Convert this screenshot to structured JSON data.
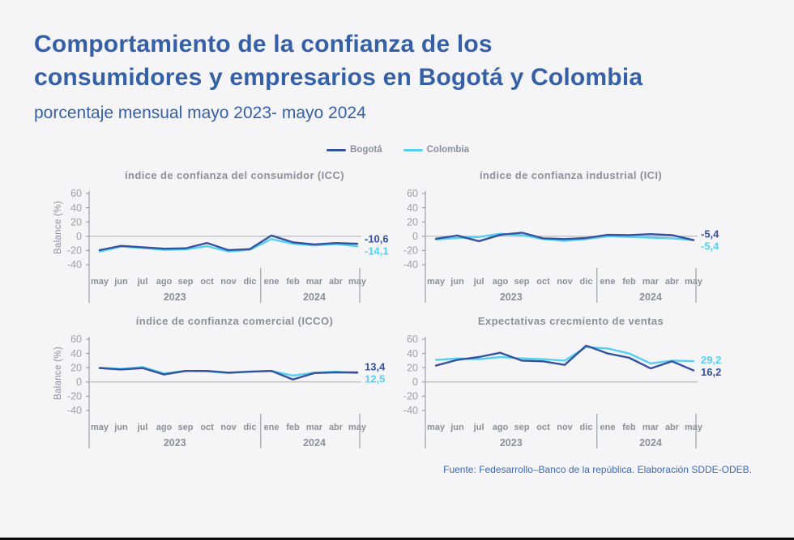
{
  "page": {
    "title_line1": "Comportamiento de la confianza de los",
    "title_line2": "consumidores y empresarios en Bogotá y Colombia",
    "subtitle": "porcentaje mensual mayo 2023- mayo 2024",
    "source": "Fuente: Fedesarrollo–Banco de la república. Elaboración SDDE-ODEB."
  },
  "colors": {
    "bogota": "#33519d",
    "colombia": "#55d0f2",
    "title_blue": "#3560a8",
    "source_blue": "#3e6ab3",
    "axis_gray": "#9ba1a9",
    "zero_line": "#b0b5bc",
    "text_gray": "#8b909a",
    "background": "#f5f5f7"
  },
  "legend": {
    "items": [
      {
        "label": "Bogotá",
        "color_key": "bogota"
      },
      {
        "label": "Colombia",
        "color_key": "colombia"
      }
    ]
  },
  "chart_data": [
    {
      "type": "line",
      "title": "índice de confianza del consumidor (ICC)",
      "ylabel": "Balance (%)",
      "x": [
        "may",
        "jun",
        "jul",
        "ago",
        "sep",
        "oct",
        "nov",
        "dic",
        "ene",
        "feb",
        "mar",
        "abr",
        "may"
      ],
      "year_groups": [
        {
          "label": "2023",
          "from": 0,
          "to": 7
        },
        {
          "label": "2024",
          "from": 8,
          "to": 12
        }
      ],
      "ylim": [
        -40,
        60
      ],
      "yticks": [
        60,
        40,
        20,
        0,
        -20,
        -40
      ],
      "grid": "zero-line-only",
      "series": [
        {
          "name": "Bogotá",
          "color_key": "bogota",
          "end_label": "-10,6",
          "values": [
            -19.5,
            -13.5,
            -15.5,
            -17.5,
            -17.0,
            -9.5,
            -19.5,
            -18.0,
            1.0,
            -8.5,
            -11.5,
            -9.5,
            -10.6
          ]
        },
        {
          "name": "Colombia",
          "color_key": "colombia",
          "end_label": "-14,1",
          "values": [
            -21.5,
            -14.5,
            -16.5,
            -19.0,
            -18.5,
            -14.0,
            -21.5,
            -19.0,
            -4.0,
            -10.5,
            -13.0,
            -11.0,
            -14.1
          ]
        }
      ]
    },
    {
      "type": "line",
      "title": "índice de confianza industrial (ICI)",
      "ylabel": "",
      "x": [
        "may",
        "jun",
        "jul",
        "ago",
        "sep",
        "oct",
        "nov",
        "dic",
        "ene",
        "feb",
        "mar",
        "abr",
        "may"
      ],
      "year_groups": [
        {
          "label": "2023",
          "from": 0,
          "to": 7
        },
        {
          "label": "2024",
          "from": 8,
          "to": 12
        }
      ],
      "ylim": [
        -40,
        60
      ],
      "yticks": [
        60,
        40,
        20,
        0,
        -20,
        -40
      ],
      "grid": "zero-line-only",
      "series": [
        {
          "name": "Bogotá",
          "color_key": "bogota",
          "end_label": "-5,4",
          "values": [
            -3.5,
            1.0,
            -7.0,
            2.0,
            5.0,
            -3.0,
            -4.0,
            -2.5,
            2.0,
            1.5,
            3.0,
            1.5,
            -5.4
          ]
        },
        {
          "name": "Colombia",
          "color_key": "colombia",
          "end_label": "-5,4",
          "values": [
            -4.5,
            -2.5,
            -1.0,
            3.5,
            1.5,
            -4.0,
            -6.5,
            -4.0,
            0.0,
            -1.0,
            -2.0,
            -3.0,
            -5.4
          ]
        }
      ]
    },
    {
      "type": "line",
      "title": "índice de confianza comercial (ICCO)",
      "ylabel": "Balance (%)",
      "x": [
        "may",
        "jun",
        "jul",
        "ago",
        "sep",
        "oct",
        "nov",
        "dic",
        "ene",
        "feb",
        "mar",
        "abr",
        "may"
      ],
      "year_groups": [
        {
          "label": "2023",
          "from": 0,
          "to": 7
        },
        {
          "label": "2024",
          "from": 8,
          "to": 12
        }
      ],
      "ylim": [
        -40,
        60
      ],
      "yticks": [
        60,
        40,
        20,
        0,
        -20,
        -40
      ],
      "grid": "zero-line-only",
      "series": [
        {
          "name": "Bogotá",
          "color_key": "bogota",
          "end_label": "13,4",
          "values": [
            19.5,
            17.5,
            19.5,
            10.5,
            15.5,
            15.5,
            13.0,
            14.5,
            15.5,
            3.5,
            12.5,
            13.5,
            13.4
          ]
        },
        {
          "name": "Colombia",
          "color_key": "colombia",
          "end_label": "12,5",
          "values": [
            20.0,
            18.5,
            21.0,
            12.0,
            15.5,
            15.0,
            12.5,
            14.5,
            15.5,
            9.0,
            13.0,
            14.5,
            12.5
          ]
        }
      ]
    },
    {
      "type": "line",
      "title": "Expectativas crecmiento de ventas",
      "ylabel": "",
      "x": [
        "may",
        "jun",
        "jul",
        "ago",
        "sep",
        "oct",
        "nov",
        "dic",
        "ene",
        "feb",
        "mar",
        "abr",
        "may"
      ],
      "year_groups": [
        {
          "label": "2023",
          "from": 0,
          "to": 7
        },
        {
          "label": "2024",
          "from": 8,
          "to": 12
        }
      ],
      "ylim": [
        -40,
        60
      ],
      "yticks": [
        60,
        40,
        20,
        0,
        -20,
        -40
      ],
      "grid": "zero-line-only",
      "series": [
        {
          "name": "Bogotá",
          "color_key": "bogota",
          "end_label": "16,2",
          "values": [
            23,
            31,
            35,
            41,
            30,
            29,
            24,
            51,
            40,
            34,
            19,
            29,
            16.2
          ]
        },
        {
          "name": "Colombia",
          "color_key": "colombia",
          "end_label": "29,2",
          "values": [
            31,
            33,
            32,
            35,
            33,
            32,
            30,
            49,
            47,
            40,
            26,
            30,
            29.2
          ]
        }
      ]
    }
  ]
}
